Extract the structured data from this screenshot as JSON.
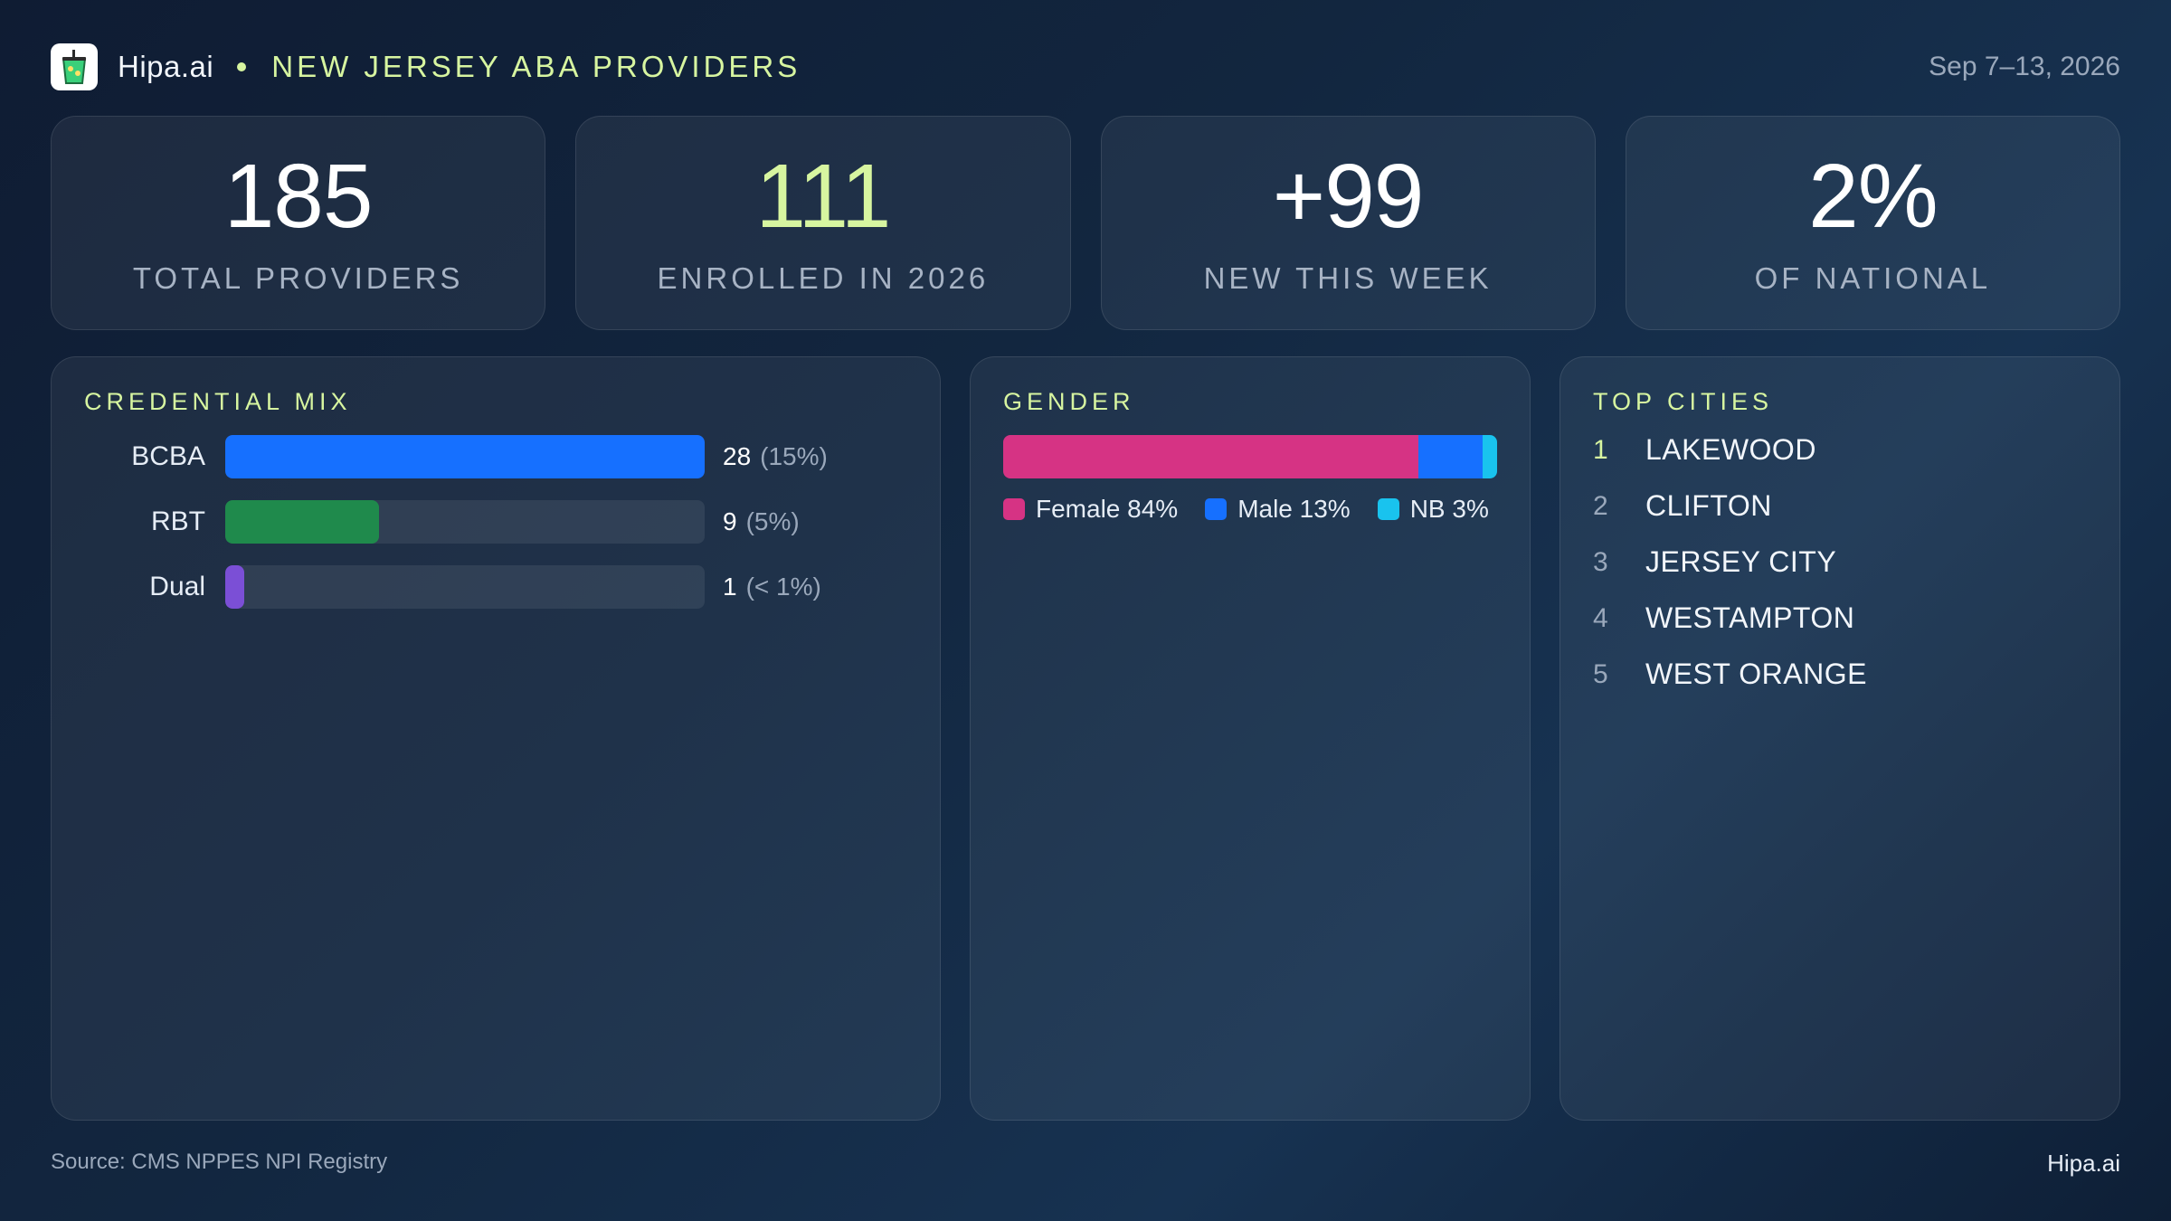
{
  "header": {
    "brand": "Hipa.ai",
    "title": "NEW JERSEY ABA PROVIDERS",
    "date_range": "Sep 7–13, 2026",
    "logo_icon": "cup-icon"
  },
  "kpis": [
    {
      "value": "185",
      "label": "TOTAL PROVIDERS"
    },
    {
      "value": "111",
      "label": "ENROLLED IN 2026"
    },
    {
      "value": "+99",
      "label": "NEW THIS WEEK"
    },
    {
      "value": "2%",
      "label": "OF NATIONAL"
    }
  ],
  "credential_mix": {
    "title": "CREDENTIAL MIX",
    "items": [
      {
        "label": "BCBA",
        "count": "28",
        "pct": "(15%)",
        "fill": 1.0,
        "color": "#1670ff"
      },
      {
        "label": "RBT",
        "count": "9",
        "pct": "(5%)",
        "fill": 0.32,
        "color": "#1f8a4c"
      },
      {
        "label": "Dual",
        "count": "1",
        "pct": "(< 1%)",
        "fill": 0.04,
        "color": "#7b4fd6"
      }
    ]
  },
  "gender": {
    "title": "GENDER",
    "segments": [
      {
        "label": "Female 84%",
        "value": 84,
        "color": "#d63384"
      },
      {
        "label": "Male 13%",
        "value": 13,
        "color": "#1670ff"
      },
      {
        "label": "NB 3%",
        "value": 3,
        "color": "#19c3ee"
      }
    ]
  },
  "top_cities": {
    "title": "TOP CITIES",
    "items": [
      {
        "rank": "1",
        "name": "LAKEWOOD"
      },
      {
        "rank": "2",
        "name": "CLIFTON"
      },
      {
        "rank": "3",
        "name": "JERSEY CITY"
      },
      {
        "rank": "4",
        "name": "WESTAMPTON"
      },
      {
        "rank": "5",
        "name": "WEST ORANGE"
      }
    ]
  },
  "footer": {
    "source": "Source: CMS NPPES NPI Registry",
    "brand": "Hipa.ai"
  }
}
